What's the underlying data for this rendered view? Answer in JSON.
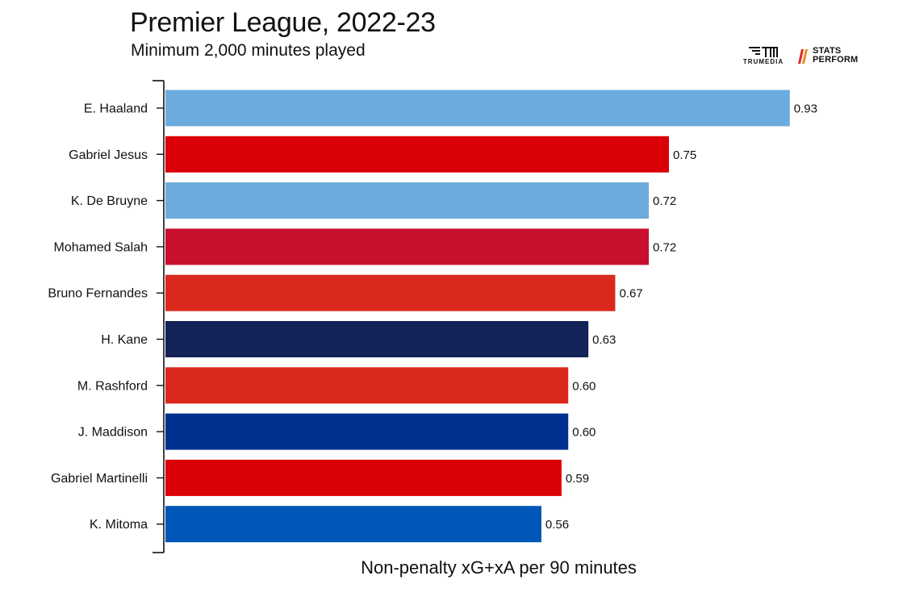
{
  "header": {
    "title": "Premier League, 2022-23",
    "subtitle": "Minimum 2,000 minutes played"
  },
  "logos": {
    "trumedia": {
      "text": "TRUMEDIA",
      "icon": "trumedia-logo-icon"
    },
    "stats_perform": {
      "line1": "STATS",
      "line2": "PERFORM",
      "icon": "stats-perform-logo-icon"
    }
  },
  "colors": {
    "axis": "#111111",
    "text": "#111111",
    "logo_accent": "#e1251b"
  },
  "chart_data": {
    "type": "bar",
    "orientation": "horizontal",
    "title": "Premier League, 2022-23",
    "subtitle": "Minimum 2,000 minutes played",
    "xlabel": "Non-penalty xG+xA per 90 minutes",
    "ylabel": "",
    "xlim": [
      0,
      0.93
    ],
    "grid": false,
    "categories": [
      "E. Haaland",
      "Gabriel Jesus",
      "K. De Bruyne",
      "Mohamed Salah",
      "Bruno Fernandes",
      "H. Kane",
      "M. Rashford",
      "J. Maddison",
      "Gabriel Martinelli",
      "K. Mitoma"
    ],
    "values": [
      0.93,
      0.75,
      0.72,
      0.72,
      0.67,
      0.63,
      0.6,
      0.6,
      0.59,
      0.56
    ],
    "value_labels": [
      "0.93",
      "0.75",
      "0.72",
      "0.72",
      "0.67",
      "0.63",
      "0.60",
      "0.60",
      "0.59",
      "0.56"
    ],
    "bar_colors": [
      "#6cabdd",
      "#db0007",
      "#6cabdd",
      "#c8102e",
      "#da291c",
      "#132257",
      "#da291c",
      "#003090",
      "#db0007",
      "#0057b8"
    ]
  }
}
